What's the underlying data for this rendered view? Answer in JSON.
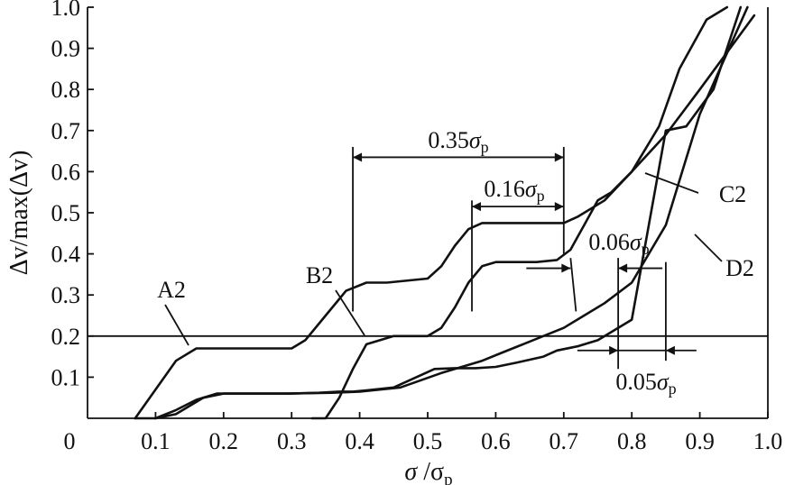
{
  "chart_data": {
    "type": "line",
    "x_label_parts": [
      "σ",
      " /σ",
      "p"
    ],
    "y_label": "Δv/max(Δv)",
    "xlim": [
      0.0,
      1.0
    ],
    "ylim": [
      0.0,
      1.0
    ],
    "x_ticks": [
      "0",
      "0.1",
      "0.2",
      "0.3",
      "0.4",
      "0.5",
      "0.6",
      "0.7",
      "0.8",
      "0.9",
      "1.0"
    ],
    "y_ticks": [
      "0.1",
      "0.2",
      "0.3",
      "0.4",
      "0.5",
      "0.6",
      "0.7",
      "0.8",
      "0.9",
      "1.0"
    ],
    "reference_line_y": 0.2,
    "series": [
      {
        "name": "A2",
        "x": [
          0.07,
          0.1,
          0.13,
          0.16,
          0.2,
          0.3,
          0.32,
          0.35,
          0.38,
          0.41,
          0.44,
          0.5,
          0.52,
          0.54,
          0.56,
          0.58,
          0.62,
          0.7,
          0.72,
          0.76,
          0.8,
          0.84,
          0.87,
          0.91,
          0.94
        ],
        "y": [
          0.0,
          0.07,
          0.14,
          0.17,
          0.17,
          0.17,
          0.19,
          0.25,
          0.31,
          0.33,
          0.33,
          0.34,
          0.37,
          0.42,
          0.46,
          0.475,
          0.475,
          0.475,
          0.49,
          0.53,
          0.6,
          0.71,
          0.85,
          0.97,
          1.0
        ]
      },
      {
        "name": "B2",
        "x": [
          0.07,
          0.1,
          0.13,
          0.17,
          0.2,
          0.25,
          0.29,
          0.36,
          0.4,
          0.46,
          0.52,
          0.55,
          0.58,
          0.61,
          0.64,
          0.7,
          0.73,
          0.76,
          0.8,
          0.85,
          0.9,
          0.97
        ],
        "y": [
          0.0,
          0.0,
          0.01,
          0.05,
          0.06,
          0.06,
          0.06,
          0.062,
          0.065,
          0.075,
          0.11,
          0.125,
          0.14,
          0.16,
          0.18,
          0.22,
          0.25,
          0.28,
          0.33,
          0.47,
          0.74,
          1.0
        ]
      },
      {
        "name": "C2",
        "x": [
          0.1,
          0.13,
          0.16,
          0.19,
          0.22,
          0.26,
          0.3,
          0.34,
          0.37,
          0.39,
          0.41,
          0.45,
          0.51,
          0.54,
          0.57,
          0.6,
          0.63,
          0.67,
          0.69,
          0.72,
          0.75,
          0.8,
          0.85,
          0.88,
          0.92,
          0.96
        ],
        "y": [
          0.0,
          0.02,
          0.045,
          0.06,
          0.06,
          0.06,
          0.06,
          0.062,
          0.065,
          0.065,
          0.068,
          0.075,
          0.12,
          0.122,
          0.122,
          0.125,
          0.135,
          0.15,
          0.165,
          0.175,
          0.19,
          0.24,
          0.7,
          0.71,
          0.8,
          1.0
        ]
      },
      {
        "name": "D2",
        "x": [
          0.33,
          0.35,
          0.37,
          0.39,
          0.41,
          0.45,
          0.5,
          0.52,
          0.54,
          0.56,
          0.58,
          0.6,
          0.62,
          0.66,
          0.69,
          0.71,
          0.73,
          0.75,
          0.77,
          0.8,
          0.85,
          0.9,
          0.98
        ],
        "y": [
          0.0,
          0.0,
          0.05,
          0.12,
          0.18,
          0.2,
          0.2,
          0.22,
          0.27,
          0.33,
          0.37,
          0.38,
          0.38,
          0.38,
          0.385,
          0.41,
          0.47,
          0.53,
          0.55,
          0.6,
          0.69,
          0.8,
          0.98
        ]
      }
    ],
    "annotations": {
      "dim_035": {
        "label": "0.35",
        "sub": "p",
        "x_start": 0.39,
        "x_end": 0.7,
        "y": 0.635
      },
      "dim_016": {
        "label": "0.16",
        "sub": "p",
        "x_start": 0.565,
        "x_end": 0.7,
        "y": 0.515
      },
      "dim_006": {
        "label": "0.06",
        "sub": "p",
        "x_left": 0.71,
        "x_right": 0.78,
        "y": 0.365
      },
      "dim_005": {
        "label": "0.05",
        "sub": "p",
        "x_left": 0.78,
        "x_right": 0.85,
        "y": 0.165
      },
      "labels": [
        "A2",
        "B2",
        "C2",
        "D2"
      ]
    }
  }
}
